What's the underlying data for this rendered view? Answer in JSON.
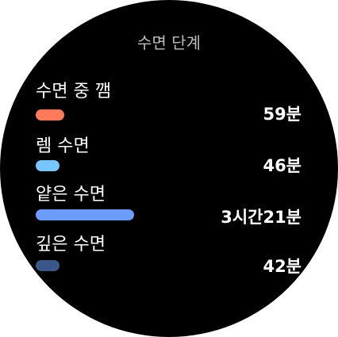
{
  "screen": {
    "title": "수면 단계"
  },
  "stages": [
    {
      "label": "수면 중 깸",
      "value": "59분",
      "minutes": 59,
      "color": "#ff7b5c"
    },
    {
      "label": "렘 수면",
      "value": "46분",
      "minutes": 46,
      "color": "#79c6ff"
    },
    {
      "label": "얕은 수면",
      "value": "3시간21분",
      "minutes": 201,
      "color": "#6d9cff"
    },
    {
      "label": "깊은 수면",
      "value": "42분",
      "minutes": 42,
      "color": "#3a5788"
    }
  ],
  "scale": {
    "max_minutes": 201
  }
}
